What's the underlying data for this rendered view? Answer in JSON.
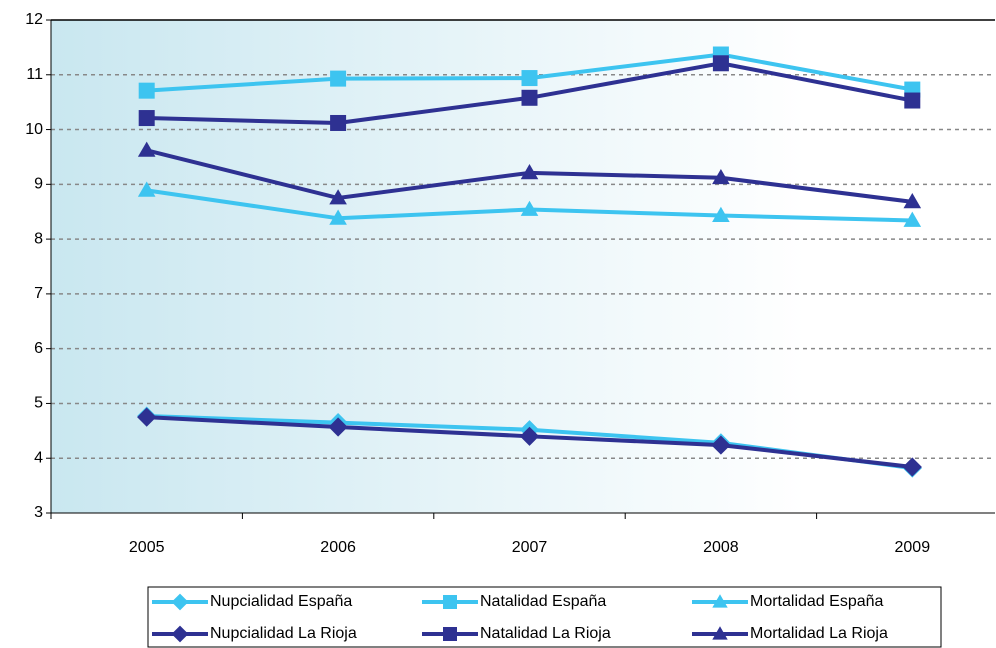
{
  "chart_data": {
    "type": "line",
    "categories": [
      "2005",
      "2006",
      "2007",
      "2008",
      "2009"
    ],
    "series": [
      {
        "name": "Nupcialidad España",
        "color": "#3dc4f0",
        "marker": "diamond",
        "values": [
          4.77,
          4.65,
          4.52,
          4.28,
          3.82
        ]
      },
      {
        "name": "Natalidad España",
        "color": "#3dc4f0",
        "marker": "square",
        "values": [
          10.71,
          10.93,
          10.94,
          11.37,
          10.73
        ]
      },
      {
        "name": "Mortalidad España",
        "color": "#3dc4f0",
        "marker": "triangle",
        "values": [
          8.89,
          8.38,
          8.54,
          8.43,
          8.34
        ]
      },
      {
        "name": "Nupcialidad La Rioja",
        "color": "#2e3192",
        "marker": "diamond",
        "values": [
          4.75,
          4.57,
          4.4,
          4.24,
          3.84
        ]
      },
      {
        "name": "Natalidad La Rioja",
        "color": "#2e3192",
        "marker": "square",
        "values": [
          10.21,
          10.12,
          10.58,
          11.21,
          10.53
        ]
      },
      {
        "name": "Mortalidad La Rioja",
        "color": "#2e3192",
        "marker": "triangle",
        "values": [
          9.62,
          8.75,
          9.21,
          9.12,
          8.68
        ]
      }
    ],
    "ylim": [
      3,
      12
    ],
    "yticks": [
      3,
      4,
      5,
      6,
      7,
      8,
      9,
      10,
      11,
      12
    ],
    "grid": true,
    "legend": "bottom"
  }
}
